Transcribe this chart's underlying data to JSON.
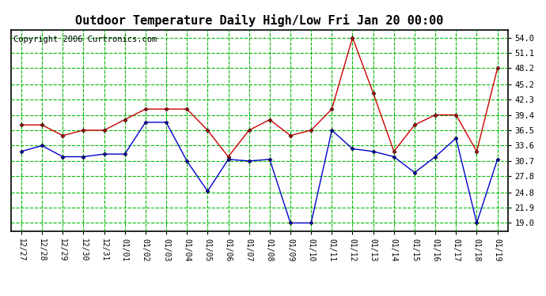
{
  "title": "Outdoor Temperature Daily High/Low Fri Jan 20 00:00",
  "copyright": "Copyright 2006 Curtronics.com",
  "x_labels": [
    "12/27",
    "12/28",
    "12/29",
    "12/30",
    "12/31",
    "01/01",
    "01/02",
    "01/03",
    "01/04",
    "01/05",
    "01/06",
    "01/07",
    "01/08",
    "01/09",
    "01/10",
    "01/11",
    "01/12",
    "01/13",
    "01/14",
    "01/15",
    "01/16",
    "01/17",
    "01/18",
    "01/19"
  ],
  "high_values": [
    37.5,
    37.5,
    35.5,
    36.5,
    36.5,
    38.5,
    40.5,
    40.5,
    40.5,
    36.5,
    31.5,
    36.5,
    38.5,
    35.5,
    36.5,
    40.5,
    54.0,
    43.5,
    32.5,
    37.5,
    39.4,
    39.4,
    32.5,
    48.2
  ],
  "low_values": [
    32.5,
    33.6,
    31.5,
    31.5,
    32.0,
    32.0,
    38.0,
    38.0,
    30.7,
    25.0,
    31.0,
    30.7,
    31.0,
    19.0,
    19.0,
    36.5,
    33.0,
    32.5,
    31.5,
    28.5,
    31.5,
    35.0,
    19.0,
    31.0
  ],
  "high_color": "#cc0000",
  "low_color": "#0000cc",
  "bg_color": "#ffffff",
  "plot_bg_color": "#ffffff",
  "grid_color": "#00bb00",
  "title_fontsize": 11,
  "copyright_fontsize": 7.5,
  "y_ticks": [
    19.0,
    21.9,
    24.8,
    27.8,
    30.7,
    33.6,
    36.5,
    39.4,
    42.3,
    45.2,
    48.2,
    51.1,
    54.0
  ],
  "ylim": [
    17.5,
    55.5
  ]
}
